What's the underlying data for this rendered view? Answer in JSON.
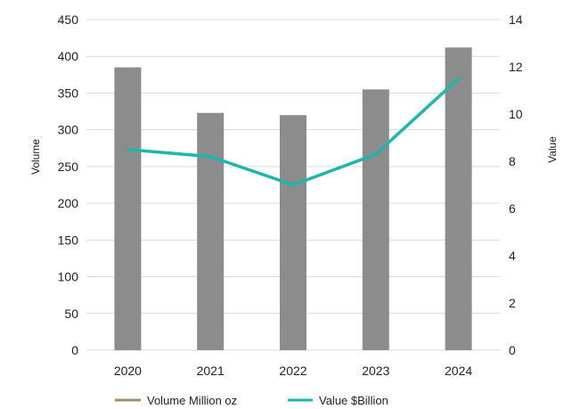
{
  "chart_data": {
    "type": "bar",
    "categories": [
      "2020",
      "2021",
      "2022",
      "2023",
      "2024"
    ],
    "series": [
      {
        "name": "Volume Million oz",
        "type": "bar",
        "axis": "left",
        "color": "#8c8c8c",
        "legend_color": "#a08f6c",
        "values": [
          385,
          323,
          320,
          355,
          412
        ]
      },
      {
        "name": "Value $Billion",
        "type": "line",
        "axis": "right",
        "color": "#1fb5ad",
        "values": [
          8.5,
          8.2,
          7.0,
          8.3,
          11.5
        ]
      }
    ],
    "ylabel": "Volume",
    "y2label": "Value",
    "ylim": [
      0,
      450
    ],
    "y2lim": [
      0,
      14
    ],
    "yticks": [
      "0",
      "50",
      "100",
      "150",
      "200",
      "250",
      "300",
      "350",
      "400",
      "450"
    ],
    "y2ticks": [
      "0",
      "2",
      "4",
      "6",
      "8",
      "10",
      "12",
      "14"
    ],
    "grid": true,
    "legend_position": "bottom"
  }
}
